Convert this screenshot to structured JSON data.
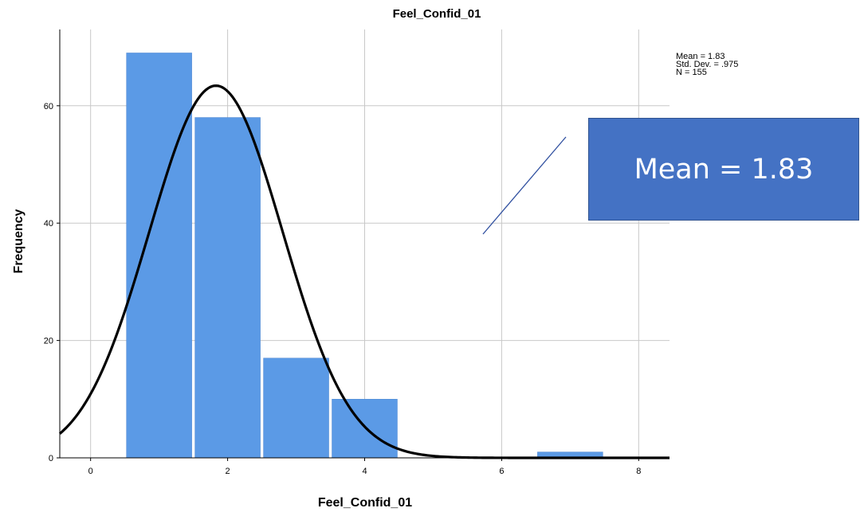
{
  "chart_data": {
    "type": "bar",
    "title": "Feel_Confid_01",
    "xlabel": "Feel_Confid_01",
    "ylabel": "Frequency",
    "bins": [
      {
        "x_start": 0.5,
        "x_end": 1.5,
        "value": 69
      },
      {
        "x_start": 1.5,
        "x_end": 2.5,
        "value": 58
      },
      {
        "x_start": 2.5,
        "x_end": 3.5,
        "value": 17
      },
      {
        "x_start": 3.5,
        "x_end": 4.5,
        "value": 10
      },
      {
        "x_start": 6.5,
        "x_end": 7.5,
        "value": 1
      }
    ],
    "xlim": [
      -0.45,
      8.45
    ],
    "ylim": [
      0,
      73
    ],
    "x_ticks": [
      "0",
      "2",
      "4",
      "6",
      "8"
    ],
    "y_ticks": [
      "0",
      "20",
      "40",
      "60"
    ],
    "grid": true,
    "normal_curve": {
      "mean": 1.83,
      "std": 0.975,
      "n": 155
    },
    "bar_color": "#5b9ae6",
    "curve_color": "#000000"
  },
  "stats": {
    "mean": "Mean = 1.83",
    "std": "Std. Dev. = .975",
    "n": "N = 155"
  },
  "callout": {
    "text": "Mean = 1.83",
    "color": "#4472c4"
  }
}
